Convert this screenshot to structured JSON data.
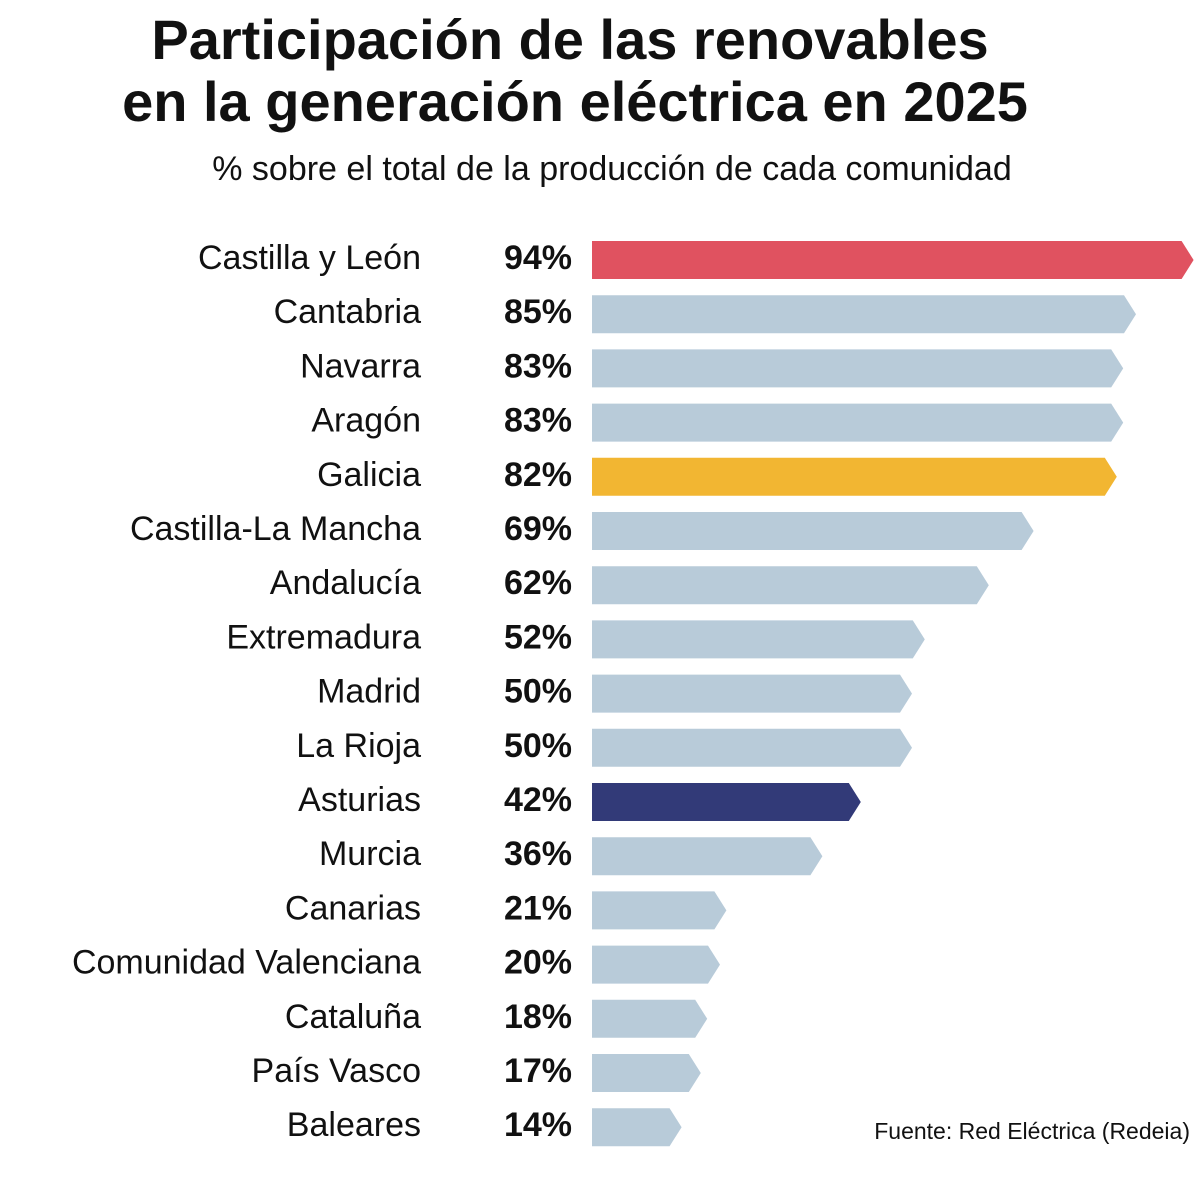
{
  "chart_data": {
    "type": "hbar",
    "title": [
      "Participación de las renovables",
      "en la generación eléctrica en 2025"
    ],
    "subtitle": "% sobre el total de la producción de cada comunidad",
    "source": "Fuente: Red Eléctrica (Redeia)",
    "categories": [
      "Castilla y León",
      "Cantabria",
      "Navarra",
      "Aragón",
      "Galicia",
      "Castilla-La Mancha",
      "Andalucía",
      "Extremadura",
      "Madrid",
      "La Rioja",
      "Asturias",
      "Murcia",
      "Canarias",
      "Comunidad Valenciana",
      "Cataluña",
      "País Vasco",
      "Baleares"
    ],
    "values": [
      94,
      85,
      83,
      83,
      82,
      69,
      62,
      52,
      50,
      50,
      42,
      36,
      21,
      20,
      18,
      17,
      14
    ],
    "value_labels": [
      "94%",
      "85%",
      "83%",
      "83%",
      "82%",
      "69%",
      "62%",
      "52%",
      "50%",
      "50%",
      "42%",
      "36%",
      "21%",
      "20%",
      "18%",
      "17%",
      "14%"
    ],
    "colors": [
      "#e05260",
      "#b8cbd9",
      "#b8cbd9",
      "#b8cbd9",
      "#f2b632",
      "#b8cbd9",
      "#b8cbd9",
      "#b8cbd9",
      "#b8cbd9",
      "#b8cbd9",
      "#323a78",
      "#b8cbd9",
      "#b8cbd9",
      "#b8cbd9",
      "#b8cbd9",
      "#b8cbd9",
      "#b8cbd9"
    ]
  }
}
